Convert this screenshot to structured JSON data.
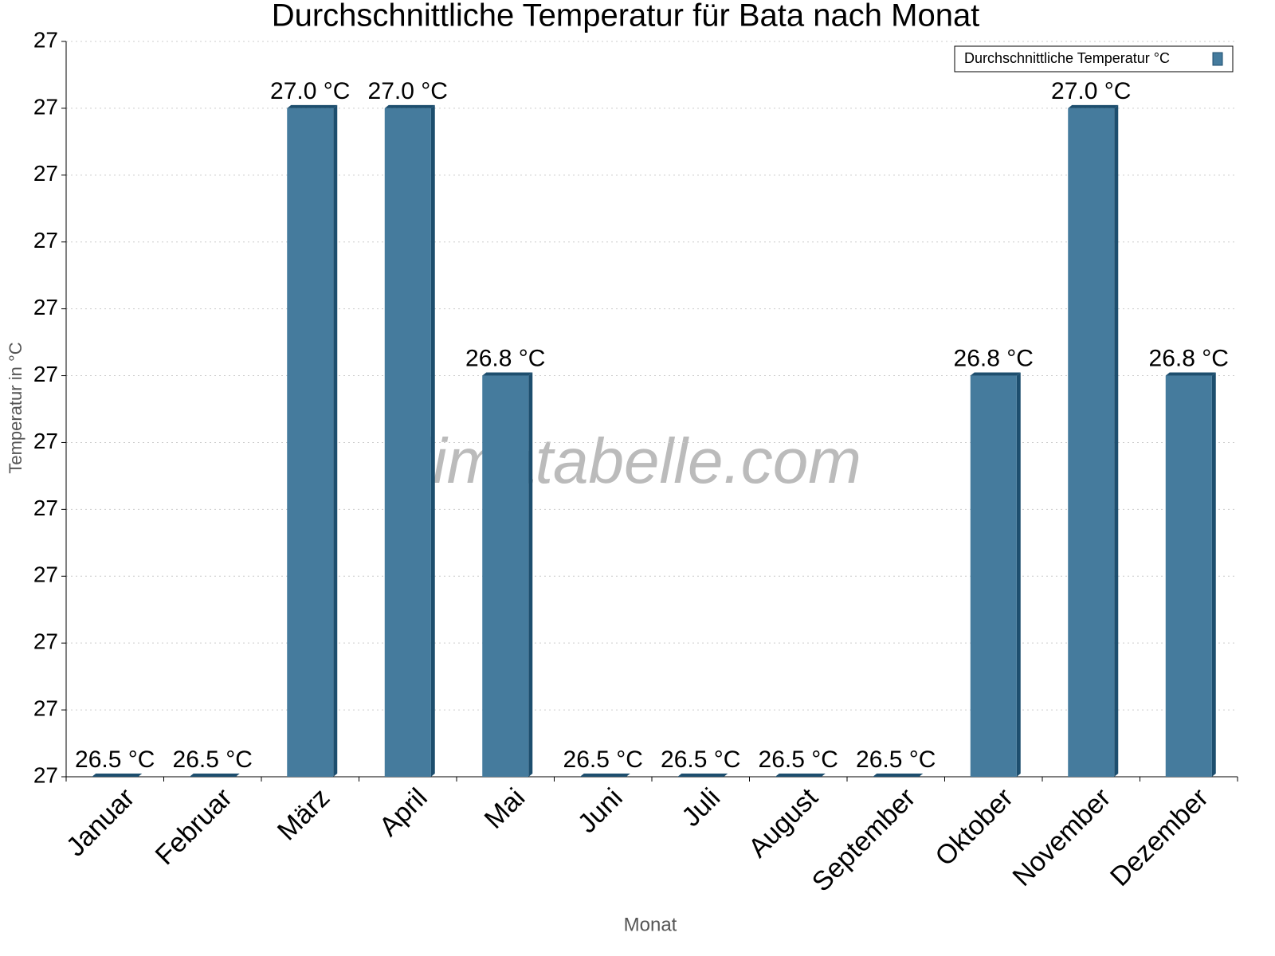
{
  "chart_data": {
    "type": "bar",
    "title": "Durchschnittliche Temperatur für Bata nach Monat",
    "x_label": "Monat",
    "y_label": "Temperatur in °C",
    "watermark": "klimatabelle.com",
    "categories": [
      "Januar",
      "Februar",
      "März",
      "April",
      "Mai",
      "Juni",
      "Juli",
      "August",
      "September",
      "Oktober",
      "November",
      "Dezember"
    ],
    "series": [
      {
        "name": "Durchschnittliche Temperatur °C",
        "color": "#457b9d",
        "values": [
          26.5,
          26.5,
          27.0,
          27.0,
          26.8,
          26.5,
          26.5,
          26.5,
          26.5,
          26.8,
          27.0,
          26.8
        ],
        "value_labels": [
          "26.5 °C",
          "26.5 °C",
          "27.0 °C",
          "27.0 °C",
          "26.8 °C",
          "26.5 °C",
          "26.5 °C",
          "26.5 °C",
          "26.5 °C",
          "26.8 °C",
          "27.0 °C",
          "26.8 °C"
        ]
      }
    ],
    "ylim": [
      26.5,
      27.05
    ],
    "yticks": [
      {
        "value": 26.5,
        "label": "27"
      },
      {
        "value": 26.55,
        "label": "27"
      },
      {
        "value": 26.6,
        "label": "27"
      },
      {
        "value": 26.65,
        "label": "27"
      },
      {
        "value": 26.7,
        "label": "27"
      },
      {
        "value": 26.75,
        "label": "27"
      },
      {
        "value": 26.8,
        "label": "27"
      },
      {
        "value": 26.85,
        "label": "27"
      },
      {
        "value": 26.9,
        "label": "27"
      },
      {
        "value": 26.95,
        "label": "27"
      },
      {
        "value": 27.0,
        "label": "27"
      },
      {
        "value": 27.05,
        "label": "27"
      }
    ],
    "grid": true,
    "legend": "upper right"
  }
}
